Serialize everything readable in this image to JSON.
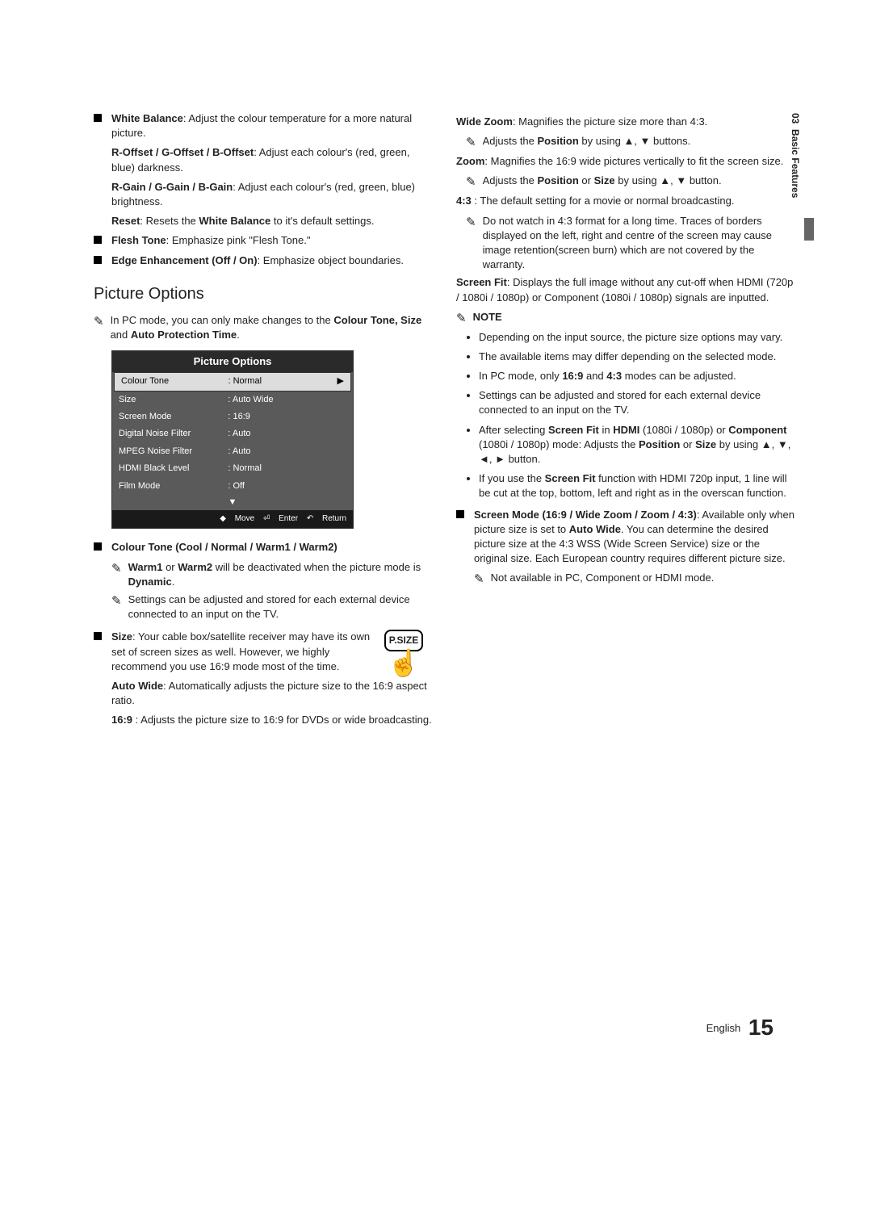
{
  "sideTab": {
    "section": "03",
    "title": "Basic Features"
  },
  "footer": {
    "lang": "English",
    "page": "15"
  },
  "left": {
    "whiteBalance": {
      "title": "White Balance",
      "desc": ": Adjust the colour temperature for a more natural picture.",
      "offset": {
        "label": "R-Offset / G-Offset / B-Offset",
        "desc": ": Adjust each colour's (red, green, blue) darkness."
      },
      "gain": {
        "label": "R-Gain / G-Gain / B-Gain",
        "desc": ": Adjust each colour's (red, green, blue) brightness."
      },
      "reset": {
        "label": "Reset",
        "mid": ": Resets the ",
        "label2": "White Balance",
        "desc": " to it's default settings."
      }
    },
    "fleshTone": {
      "title": "Flesh Tone",
      "desc": ": Emphasize pink \"Flesh Tone.\""
    },
    "edge": {
      "title": "Edge Enhancement (Off / On)",
      "desc": ": Emphasize object boundaries."
    },
    "heading": "Picture Options",
    "pcNote": {
      "pre": "In PC mode, you can only make changes to the ",
      "b1": "Colour Tone, Size",
      "mid": " and ",
      "b2": "Auto Protection Time",
      "post": "."
    },
    "menu": {
      "title": "Picture Options",
      "rows": [
        {
          "label": "Colour Tone",
          "value": ": Normal",
          "selected": true
        },
        {
          "label": "Size",
          "value": ": Auto Wide"
        },
        {
          "label": "Screen Mode",
          "value": ": 16:9"
        },
        {
          "label": "Digital Noise Filter",
          "value": ": Auto"
        },
        {
          "label": "MPEG Noise Filter",
          "value": ": Auto"
        },
        {
          "label": "HDMI Black Level",
          "value": ": Normal"
        },
        {
          "label": "Film Mode",
          "value": ": Off"
        }
      ],
      "footer": {
        "move": "Move",
        "enter": "Enter",
        "ret": "Return"
      }
    },
    "colourTone": {
      "title": "Colour Tone (Cool / Normal / Warm1 / Warm2)",
      "n1": {
        "b1": "Warm1",
        "mid": " or ",
        "b2": "Warm2",
        "post": " will be deactivated when the picture mode is ",
        "b3": "Dynamic",
        "post2": "."
      },
      "n2": "Settings can be adjusted and stored for each external device connected to an input on the TV."
    },
    "size": {
      "title": "Size",
      "desc": ": Your cable box/satellite receiver may have its own set of screen sizes as well. However, we highly recommend you use 16:9 mode most of the time.",
      "autoWide": {
        "label": "Auto Wide",
        "desc": ": Automatically adjusts the picture size to the 16:9 aspect ratio."
      },
      "sixteenNine": {
        "label": "16:9",
        "desc": " : Adjusts the picture size to 16:9 for DVDs or wide broadcasting."
      },
      "psizeBtn": "P.SIZE"
    }
  },
  "right": {
    "wideZoom": {
      "label": "Wide Zoom",
      "desc": ": Magnifies the picture size more than 4:3.",
      "note": {
        "pre": "Adjusts the ",
        "b": "Position",
        "post": " by using ▲, ▼ buttons."
      }
    },
    "zoom": {
      "label": "Zoom",
      "desc": ": Magnifies the 16:9 wide pictures vertically to fit the screen size.",
      "note": {
        "pre": "Adjusts the ",
        "b1": "Position",
        "mid": " or ",
        "b2": "Size",
        "post": " by using ▲, ▼ button."
      }
    },
    "fourThree": {
      "label": "4:3",
      "desc": " : The default setting for a movie or normal broadcasting.",
      "note": "Do not watch in 4:3 format for a long time. Traces of borders displayed on the left, right and centre of the screen may cause image retention(screen burn) which are not covered by the warranty."
    },
    "screenFit": {
      "label": "Screen Fit",
      "desc": ": Displays the full image without any cut-off when HDMI (720p / 1080i / 1080p) or Component (1080i / 1080p) signals are inputted."
    },
    "noteLabel": "NOTE",
    "notes": {
      "n1": "Depending on the input source, the picture size options may vary.",
      "n2": "The available items may differ depending on the selected mode.",
      "n3": {
        "pre": "In PC mode, only ",
        "b1": "16:9",
        "mid": " and ",
        "b2": "4:3",
        "post": " modes can be adjusted."
      },
      "n4": "Settings can be adjusted and stored for each external device connected to an input on the TV.",
      "n5": {
        "pre": "After selecting ",
        "b1": "Screen Fit",
        "mid1": " in ",
        "b2": "HDMI",
        "mid2": " (1080i / 1080p) or ",
        "b3": "Component",
        "mid3": " (1080i / 1080p) mode: Adjusts the ",
        "b4": "Position",
        "mid4": " or ",
        "b5": "Size",
        "post": " by using ▲, ▼, ◄, ► button."
      },
      "n6": {
        "pre": "If you use the ",
        "b": "Screen Fit",
        "post": " function with HDMI 720p input, 1 line will be cut at the top, bottom, left and right as in the overscan function."
      }
    },
    "screenMode": {
      "title": "Screen Mode (16:9 / Wide Zoom / Zoom / 4:3)",
      "desc1": ": Available only when picture size is set to ",
      "b": "Auto Wide",
      "desc2": ". You can determine the desired picture size at the 4:3 WSS (Wide Screen Service) size or the original size. Each European country requires different picture size.",
      "note": "Not available in PC, Component or HDMI mode."
    }
  }
}
